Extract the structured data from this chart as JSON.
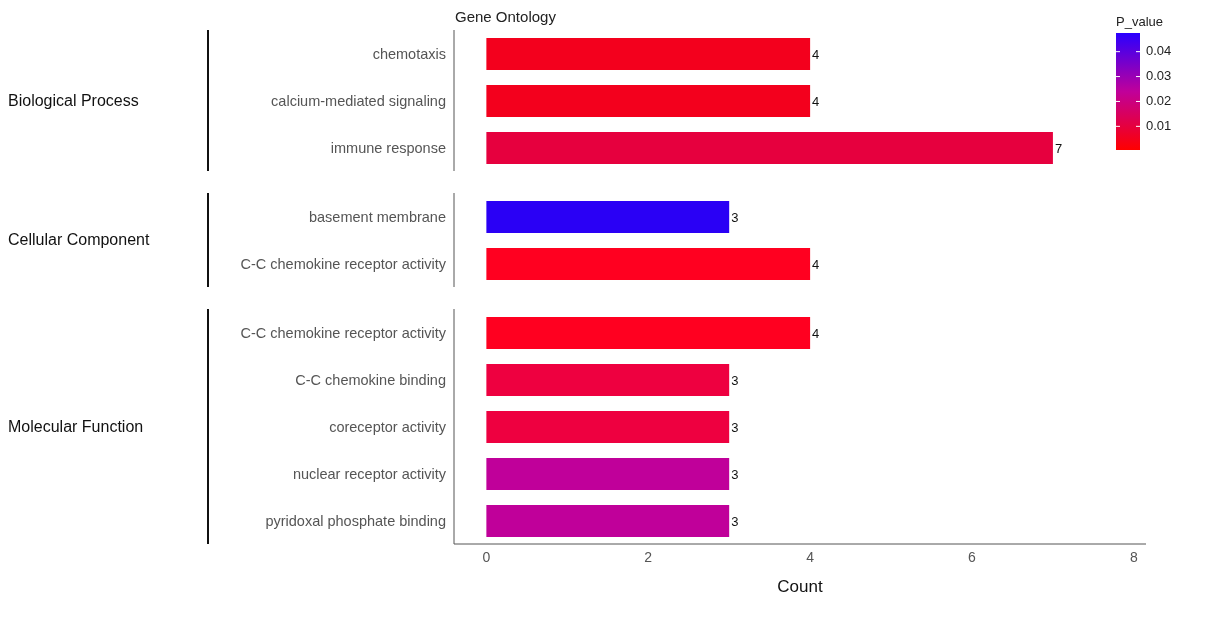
{
  "chart_data": [
    {
      "type": "bar",
      "orientation": "horizontal",
      "title": "Gene Ontology",
      "ylabel": "Biological Process",
      "categories": [
        "chemotaxis",
        "calcium-mediated signaling",
        "immune response"
      ],
      "values": [
        4,
        4,
        7
      ],
      "cvalues": [
        0.005,
        0.005,
        0.01
      ],
      "data_labels": true,
      "tick_labels": "y",
      "clabel": "P_value",
      "clim": [
        0.0005,
        0.0475
      ],
      "cticks": [
        0.01,
        0.02,
        0.03,
        0.04
      ]
    },
    {
      "type": "bar",
      "orientation": "horizontal",
      "ylabel": "Cellular Component",
      "categories": [
        "basement membrane",
        "C-C chemokine receptor activity"
      ],
      "values": [
        3,
        4
      ],
      "colors": [
        "#2a00f5",
        "#ff0020"
      ],
      "data_labels": true,
      "tick_labels": "y"
    },
    {
      "type": "bar",
      "orientation": "horizontal",
      "ylabel": "Molecular Function",
      "xlabel": "Count",
      "categories": [
        "C-C chemokine receptor activity",
        "C-C chemokine binding",
        "coreceptor activity",
        "nuclear receptor activity",
        "pyridoxal phosphate binding"
      ],
      "values": [
        4,
        3,
        3,
        3,
        3
      ],
      "colors": [
        "#ff0020",
        "#ee0040",
        "#ee0040",
        "#c0009a",
        "#c0009a"
      ],
      "data_labels": true,
      "xlim": [
        -0.4,
        8.15
      ],
      "xticks": [
        0,
        2,
        4,
        6,
        8
      ]
    }
  ]
}
